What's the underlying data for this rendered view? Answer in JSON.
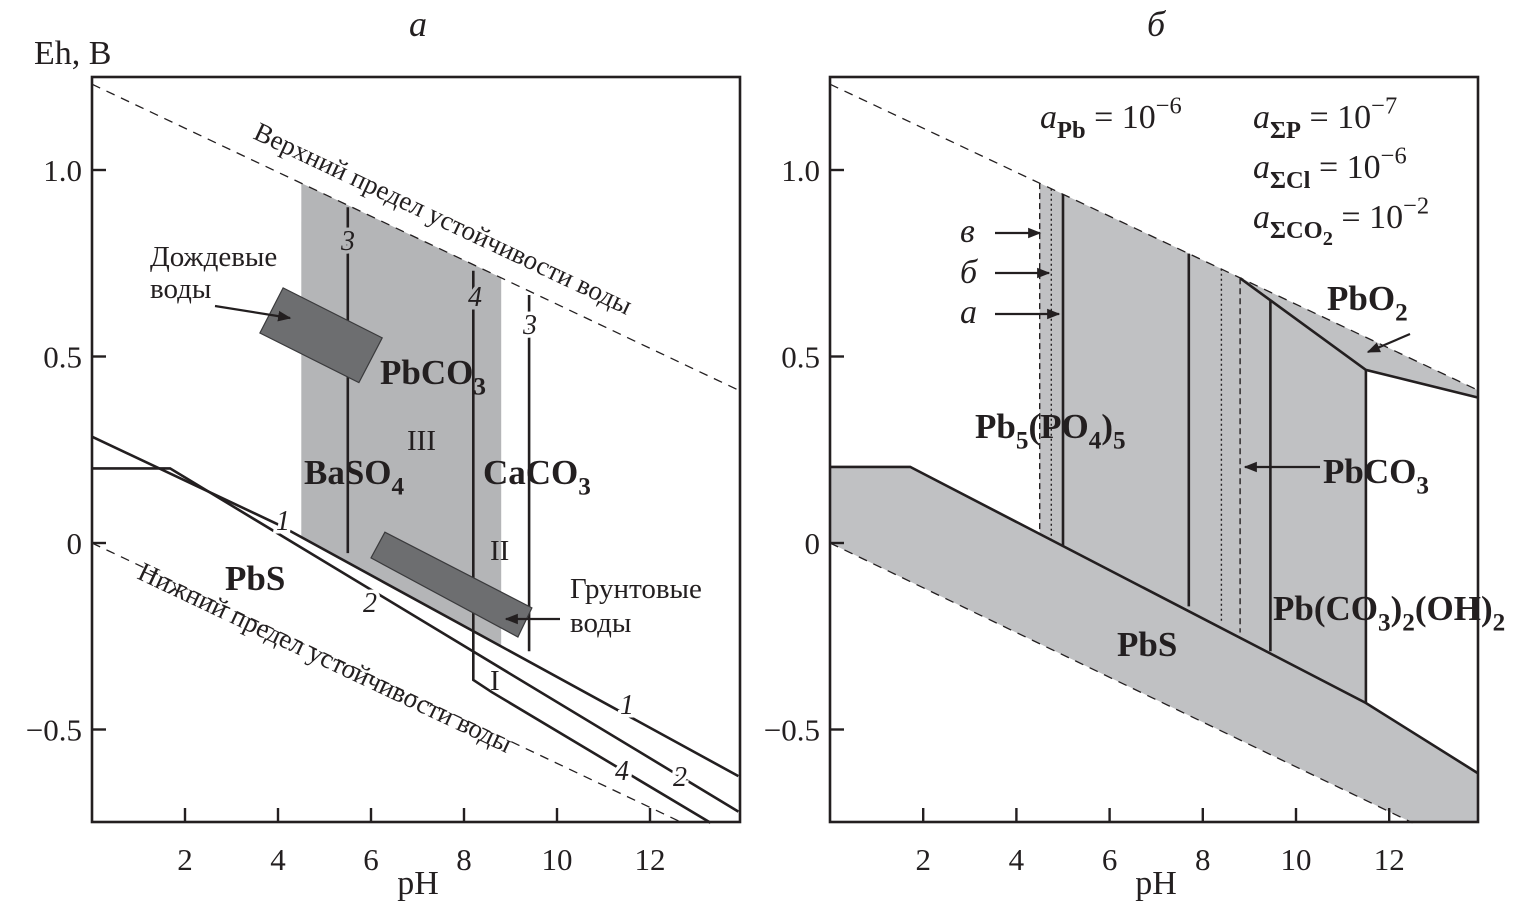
{
  "colors": {
    "band_a": "#b4b5b7",
    "field_b": "#c0c1c3",
    "sample_box": "#6d6e70",
    "ink": "#231f20"
  },
  "chart_data": [
    {
      "panel": "a",
      "title": "а",
      "type": "line",
      "xlabel": "pH",
      "ylabel": "Eh, В",
      "xlim": [
        0,
        13.9
      ],
      "ylim": [
        -0.75,
        1.25
      ],
      "grid": false,
      "xticks": [
        "2",
        "4",
        "6",
        "8",
        "10",
        "12"
      ],
      "yticks": [
        "1.0",
        "0.5",
        "0",
        "−0.5"
      ],
      "water_limits": [
        {
          "label": "Верхний предел устойчивости воды",
          "points": [
            [
              0,
              1.23
            ],
            [
              13.9,
              0.41
            ]
          ]
        },
        {
          "label": "Нижний предел устойчивости воды",
          "points": [
            [
              0,
              0
            ],
            [
              12.7,
              -0.75
            ]
          ]
        }
      ],
      "shaded_field": [
        [
          4.5,
          0.965
        ],
        [
          8.8,
          0.711
        ],
        [
          8.8,
          -0.276
        ],
        [
          4.5,
          0.016
        ]
      ],
      "lines": [
        {
          "label": "1",
          "points": [
            [
              0,
              0.285
            ],
            [
              4,
              0.05
            ],
            [
              13.9,
              -0.625
            ]
          ]
        },
        {
          "label": "2",
          "points": [
            [
              0,
              0.2
            ],
            [
              1.68,
              0.2
            ],
            [
              13.9,
              -0.72
            ]
          ]
        },
        {
          "label": "3",
          "points": [
            [
              5.5,
              0.9
            ],
            [
              5.5,
              -0.027
            ]
          ]
        },
        {
          "label": "4",
          "points": [
            [
              8.2,
              0.73
            ],
            [
              8.2,
              -0.367
            ],
            [
              8.6,
              -0.4
            ],
            [
              13.3,
              -0.75
            ]
          ]
        },
        {
          "label": "3",
          "points": [
            [
              9.4,
              0.665
            ],
            [
              9.4,
              -0.29
            ]
          ]
        }
      ],
      "water_samples": [
        {
          "label": [
            "Дождевые",
            "воды"
          ],
          "polygon": [
            [
              4.11,
              0.684
            ],
            [
              6.24,
              0.55
            ],
            [
              5.74,
              0.43
            ],
            [
              3.61,
              0.563
            ]
          ]
        },
        {
          "label": [
            "Грунтовые",
            "воды"
          ],
          "polygon": [
            [
              6.3,
              0.029
            ],
            [
              9.46,
              -0.174
            ],
            [
              9.16,
              -0.252
            ],
            [
              6.0,
              -0.04
            ]
          ]
        }
      ],
      "field_labels": {
        "pbco3": [
          [
            "PbCO",
            "b"
          ],
          [
            "3",
            "bsub"
          ]
        ],
        "baso4": [
          [
            "BaSO",
            "b"
          ],
          [
            "4",
            "bsub"
          ]
        ],
        "caco3": [
          [
            "CaCO",
            "b"
          ],
          [
            "3",
            "bsub"
          ]
        ],
        "pbs": [
          [
            "PbS",
            "b"
          ]
        ],
        "r3": [
          [
            "III",
            ""
          ]
        ],
        "r2": [
          [
            "II",
            ""
          ]
        ],
        "r1": [
          [
            "I",
            ""
          ]
        ]
      }
    },
    {
      "panel": "b",
      "title": "б",
      "type": "line",
      "xlabel": "pH",
      "xlim": [
        0,
        13.9
      ],
      "ylim": [
        -0.75,
        1.25
      ],
      "grid": false,
      "xticks": [
        "2",
        "4",
        "6",
        "8",
        "10",
        "12"
      ],
      "yticks": [
        "1.0",
        "0.5",
        "0",
        "−0.5"
      ],
      "water_limits": [
        {
          "points": [
            [
              0,
              1.23
            ],
            [
              13.9,
              0.41
            ]
          ]
        },
        {
          "points": [
            [
              0,
              0
            ],
            [
              12.5,
              -0.75
            ]
          ]
        }
      ],
      "activities": [
        [
          [
            "a",
            "i"
          ],
          [
            "Pb",
            "sub"
          ],
          [
            " = 10",
            ""
          ],
          [
            "−6",
            "sup"
          ]
        ],
        [
          [
            "a",
            "i"
          ],
          [
            "ΣP",
            "sub"
          ],
          [
            " = 10",
            ""
          ],
          [
            "−7",
            "sup"
          ]
        ],
        [
          [
            "a",
            "i"
          ],
          [
            "ΣCl",
            "sub"
          ],
          [
            " = 10",
            ""
          ],
          [
            "−6",
            "sup"
          ]
        ],
        [
          [
            "a",
            "i"
          ],
          [
            "ΣCO",
            "sub"
          ],
          [
            "2",
            "subsub"
          ],
          [
            " = 10",
            ""
          ],
          [
            "−2",
            "sup"
          ]
        ]
      ],
      "shaded_fields": [
        [
          [
            0,
            0.204
          ],
          [
            1.72,
            0.204
          ],
          [
            11.5,
            -0.429
          ],
          [
            13.9,
            -0.617
          ],
          [
            13.9,
            -0.75
          ],
          [
            12.5,
            -0.75
          ],
          [
            0,
            0
          ]
        ],
        [
          [
            4.5,
            0.965
          ],
          [
            11.5,
            0.552
          ],
          [
            13.9,
            0.41
          ],
          [
            13.9,
            0.39
          ],
          [
            11.5,
            0.464
          ],
          [
            11.5,
            -0.429
          ],
          [
            4.5,
            0.024
          ]
        ]
      ],
      "lines": [
        {
          "style": "solid",
          "points": [
            [
              0,
              0.204
            ],
            [
              1.72,
              0.204
            ],
            [
              11.5,
              -0.429
            ],
            [
              13.9,
              -0.617
            ]
          ]
        },
        {
          "style": "solid",
          "points": [
            [
              8.8,
              0.71
            ],
            [
              11.5,
              0.464
            ],
            [
              13.9,
              0.39
            ]
          ]
        },
        {
          "style": "dashed",
          "label": "в",
          "points": [
            [
              4.5,
              0.965
            ],
            [
              4.5,
              0.024
            ]
          ]
        },
        {
          "style": "dotted",
          "label": "б",
          "points": [
            [
              4.75,
              0.95
            ],
            [
              4.75,
              0.008
            ]
          ]
        },
        {
          "style": "solid",
          "label": "а",
          "points": [
            [
              5.0,
              0.935
            ],
            [
              5.0,
              -0.008
            ]
          ]
        },
        {
          "style": "solid",
          "points": [
            [
              7.7,
              0.776
            ],
            [
              7.7,
              -0.17
            ]
          ]
        },
        {
          "style": "dotted",
          "points": [
            [
              8.4,
              0.735
            ],
            [
              8.4,
              -0.215
            ]
          ]
        },
        {
          "style": "dashed",
          "points": [
            [
              8.8,
              0.71
            ],
            [
              8.8,
              -0.24
            ]
          ]
        },
        {
          "style": "solid",
          "points": [
            [
              9.45,
              0.65
            ],
            [
              9.45,
              -0.29
            ]
          ]
        },
        {
          "style": "solid",
          "points": [
            [
              11.5,
              0.464
            ],
            [
              11.5,
              -0.429
            ]
          ]
        }
      ],
      "field_labels": {
        "pb5po45": [
          [
            "Pb",
            "b"
          ],
          [
            "5",
            "bsub"
          ],
          [
            "(PO",
            "b"
          ],
          [
            "4",
            "bsub"
          ],
          [
            ")",
            "b"
          ],
          [
            "5",
            "bsub"
          ]
        ],
        "pbo2": [
          [
            "PbO",
            "b"
          ],
          [
            "2",
            "bsub"
          ]
        ],
        "pbco3": [
          [
            "PbCO",
            "b"
          ],
          [
            "3",
            "bsub"
          ]
        ],
        "pbco3oh": [
          [
            "Pb(CO",
            "b"
          ],
          [
            "3",
            "bsub"
          ],
          [
            ")",
            "b"
          ],
          [
            "2",
            "bsub"
          ],
          [
            "(OH)",
            "b"
          ],
          [
            "2",
            "bsub"
          ]
        ],
        "pbs": [
          [
            "PbS",
            "b"
          ]
        ],
        "lv": [
          [
            "в",
            "i"
          ]
        ],
        "lb": [
          [
            "б",
            "i"
          ]
        ],
        "la": [
          [
            "а",
            "i"
          ]
        ]
      }
    }
  ]
}
